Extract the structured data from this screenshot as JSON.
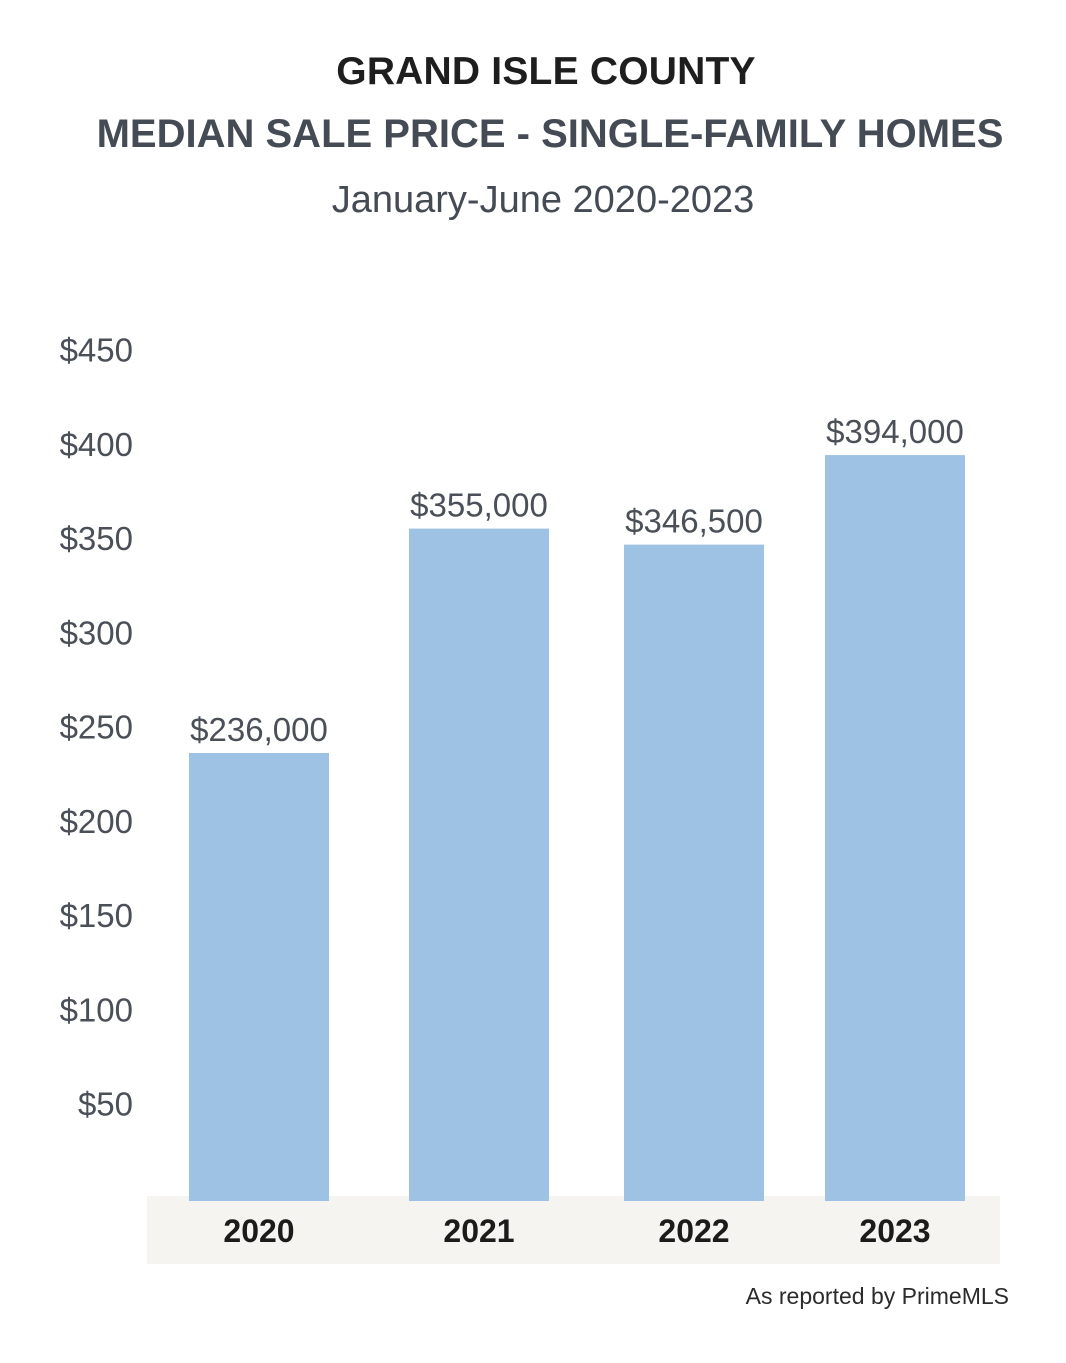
{
  "header": {
    "title_line1": "GRAND ISLE COUNTY",
    "title_line2": "MEDIAN SALE PRICE - SINGLE-FAMILY HOMES",
    "subtitle": "January-June 2020-2023"
  },
  "footer": {
    "source": "As reported by PrimeMLS"
  },
  "colors": {
    "bar": "#9dc2e4",
    "axis_band": "#f5f4f1",
    "title_dark": "#1e1e1e",
    "title_gray": "#454b55"
  },
  "chart_data": {
    "type": "bar",
    "title": "GRAND ISLE COUNTY MEDIAN SALE PRICE - SINGLE-FAMILY HOMES",
    "subtitle": "January-June 2020-2023",
    "categories": [
      "2020",
      "2021",
      "2022",
      "2023"
    ],
    "values": [
      236000,
      355000,
      346500,
      394000
    ],
    "data_labels": [
      "$236,000",
      "$355,000",
      "$346,500",
      "$394,000"
    ],
    "y_ticks": [
      50,
      100,
      150,
      200,
      250,
      300,
      350,
      400,
      450
    ],
    "y_tick_labels": [
      "$50",
      "$100",
      "$150",
      "$200",
      "$250",
      "$300",
      "$350",
      "$400",
      "$450"
    ],
    "ylim": [
      0,
      450000
    ],
    "grid": false,
    "legend": "none"
  }
}
